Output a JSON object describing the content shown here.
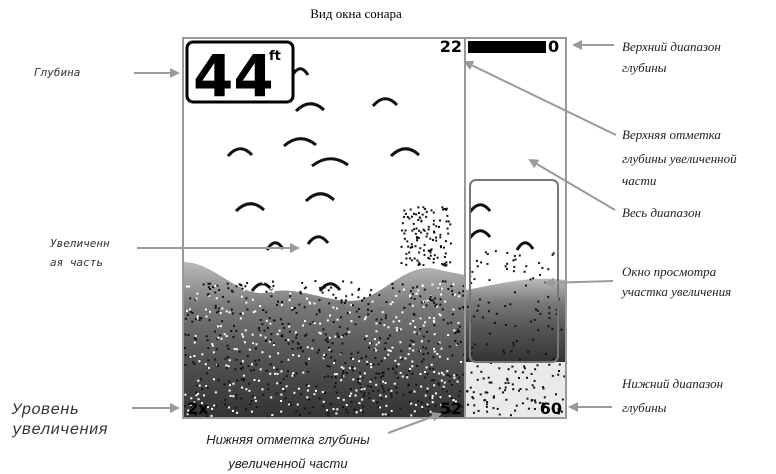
{
  "title": "Вид окна сонара",
  "display": {
    "depth": "44",
    "depth_unit": "ft",
    "zoom_upper": "22",
    "range_upper": "0",
    "range_lower": "60",
    "zoom_lower": "52",
    "zoom_level": "2x"
  },
  "callouts": [
    {
      "lines": [
        "Глубина"
      ]
    },
    {
      "lines": [
        "Увеличенн",
        "ая часть"
      ]
    },
    {
      "lines": [
        "Уровень",
        "увеличения"
      ]
    },
    {
      "lines": [
        "Верхний диапазон",
        "глубины"
      ]
    },
    {
      "lines": [
        "Верхняя отметка",
        "глубины увеличенной",
        "части"
      ]
    },
    {
      "lines": [
        "Весь диапазон"
      ]
    },
    {
      "lines": [
        "Окно просмотра",
        "участка увеличения"
      ]
    },
    {
      "lines": [
        "Нижний диапазон",
        "глубины"
      ]
    },
    {
      "lines": [
        "Нижняя отметка глубины",
        "увеличенной части"
      ]
    }
  ]
}
